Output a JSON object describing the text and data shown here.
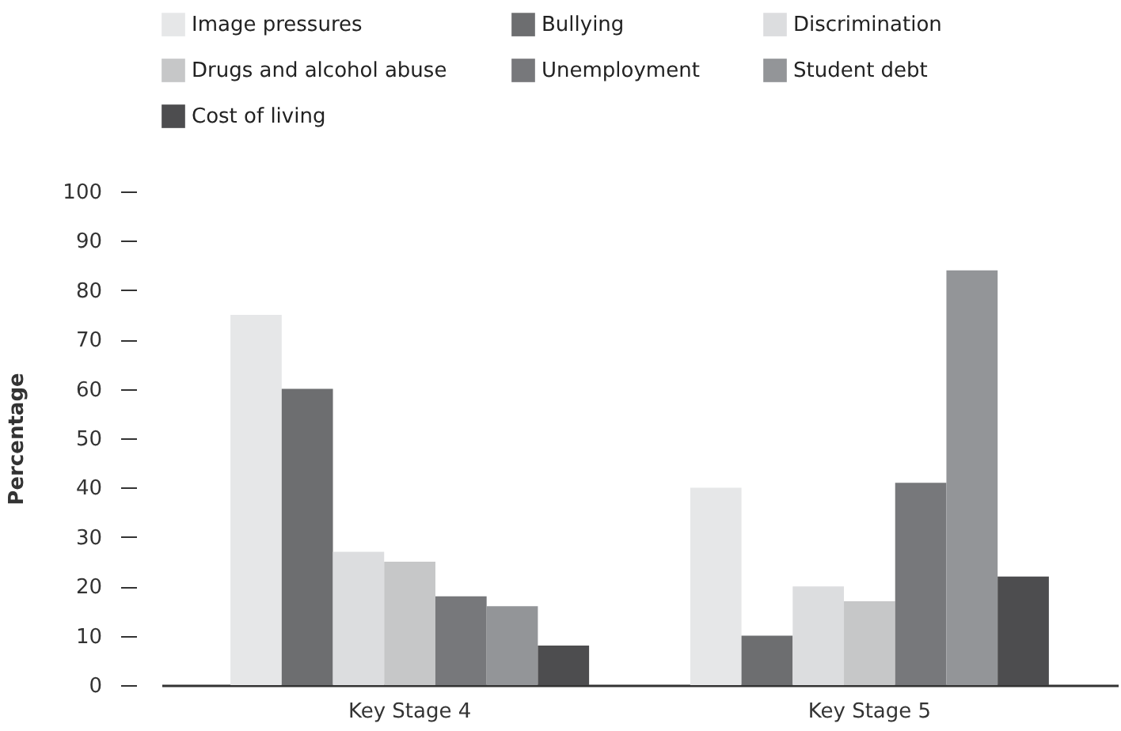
{
  "chart_data": {
    "type": "bar",
    "ylabel": "Percentage",
    "categories": [
      "Key Stage 4",
      "Key Stage 5"
    ],
    "series": [
      {
        "name": "Image pressures",
        "color": "#e6e7e8",
        "values": [
          75,
          40
        ]
      },
      {
        "name": "Bullying",
        "color": "#6d6e70",
        "values": [
          60,
          10
        ]
      },
      {
        "name": "Discrimination",
        "color": "#dcdddf",
        "values": [
          27,
          20
        ]
      },
      {
        "name": "Drugs and alcohol abuse",
        "color": "#c6c7c8",
        "values": [
          25,
          17
        ]
      },
      {
        "name": "Unemployment",
        "color": "#77787b",
        "values": [
          18,
          41
        ]
      },
      {
        "name": "Student debt",
        "color": "#939598",
        "values": [
          16,
          84
        ]
      },
      {
        "name": "Cost of living",
        "color": "#4d4d4f",
        "values": [
          8,
          22
        ]
      }
    ],
    "ylim": [
      0,
      100
    ],
    "yticks": [
      0,
      10,
      20,
      30,
      40,
      50,
      60,
      70,
      80,
      90,
      100
    ],
    "grid": false,
    "legend": "top"
  }
}
